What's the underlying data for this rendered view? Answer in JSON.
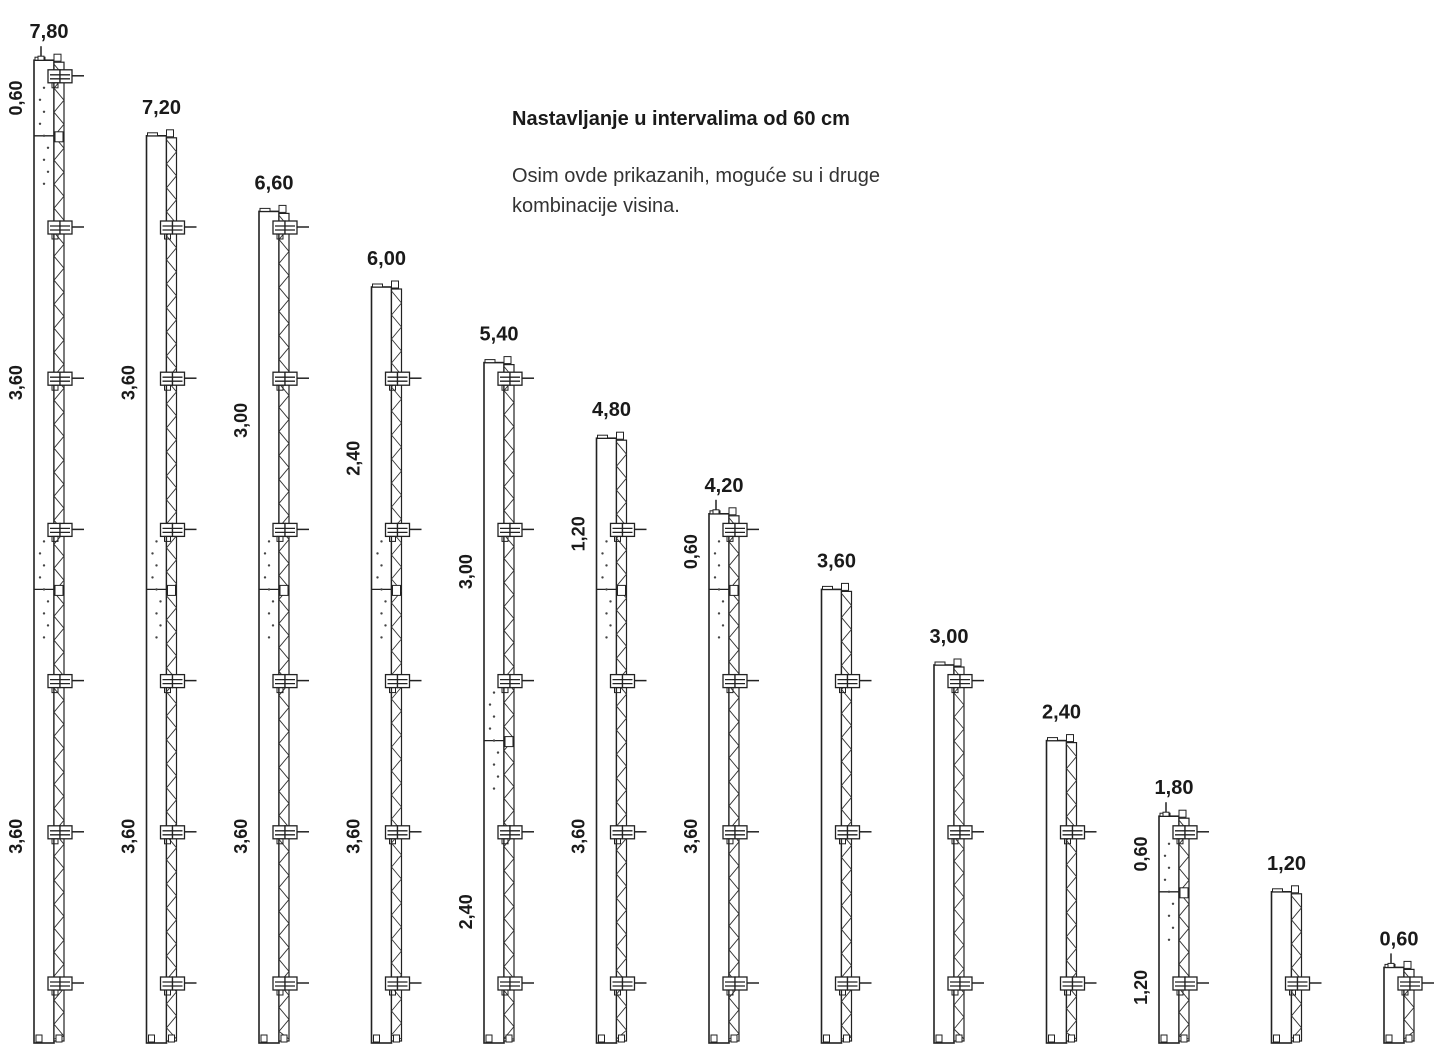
{
  "heading": "Nastavljanje u intervalima od 60 cm",
  "description": "Osim ovde prikazanih, moguće su i druge kombinacije visina.",
  "columns": [
    {
      "total": "7,80",
      "segments": [
        "3,60",
        "3,60",
        "0,60"
      ],
      "fillers": [
        0.6
      ]
    },
    {
      "total": "7,20",
      "segments": [
        "3,60",
        "3,60"
      ]
    },
    {
      "total": "6,60",
      "segments": [
        "3,60",
        "3,00"
      ]
    },
    {
      "total": "6,00",
      "segments": [
        "3,60",
        "2,40"
      ]
    },
    {
      "total": "5,40",
      "segments": [
        "2,40",
        "3,00"
      ]
    },
    {
      "total": "4,80",
      "segments": [
        "3,60",
        "1,20"
      ]
    },
    {
      "total": "4,20",
      "segments": [
        "3,60",
        "0,60"
      ],
      "fillers": [
        0.6
      ]
    },
    {
      "total": "3,60",
      "segments": []
    },
    {
      "total": "3,00",
      "segments": []
    },
    {
      "total": "2,40",
      "segments": []
    },
    {
      "total": "1,80",
      "segments": [
        "1,20",
        "0,60"
      ],
      "fillers": [
        0.6
      ]
    },
    {
      "total": "1,20",
      "segments": []
    },
    {
      "total": "0,60",
      "segments": []
    }
  ]
}
